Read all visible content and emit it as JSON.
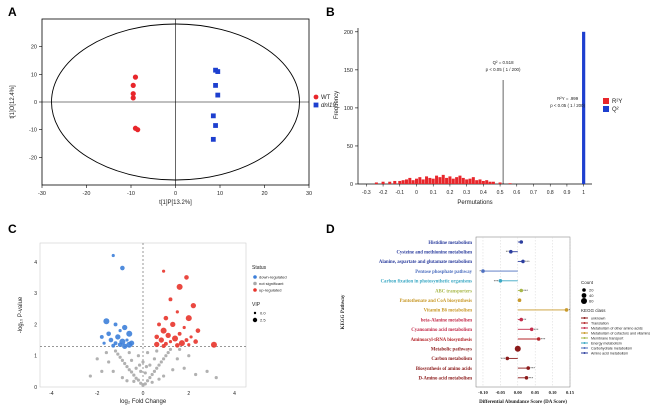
{
  "chart_data": [
    {
      "panel": "A",
      "type": "scatter",
      "xlabel": "t[1]P[13.2%]",
      "ylabel": "t[1]O[12.4%]",
      "xlim": [
        -30,
        30
      ],
      "ylim": [
        -30,
        30
      ],
      "xticks": [
        "-30",
        "-20",
        "-10",
        "0",
        "10",
        "20",
        "30"
      ],
      "yticks": [
        "-20",
        "-10",
        "0",
        "10",
        "20"
      ],
      "legend": {
        "placement": "right"
      },
      "series": [
        {
          "name": "WT",
          "color": "#e8262b",
          "marker": "circle",
          "points": [
            [
              -9,
              9
            ],
            [
              -9.5,
              6
            ],
            [
              -9.5,
              3
            ],
            [
              -9.5,
              1.5
            ],
            [
              -9,
              -9.5
            ],
            [
              -8.5,
              -10
            ]
          ]
        },
        {
          "name": "dnl19",
          "color": "#1d3fcf",
          "marker": "square",
          "points": [
            [
              9,
              11.5
            ],
            [
              9.5,
              11
            ],
            [
              9,
              6
            ],
            [
              9.5,
              2.5
            ],
            [
              8.5,
              -5
            ],
            [
              9,
              -8.5
            ],
            [
              8.5,
              -13.5
            ]
          ]
        }
      ]
    },
    {
      "panel": "B",
      "type": "bar",
      "xlabel": "Permutations",
      "ylabel": "Frequency",
      "xlim": [
        -0.35,
        1.05
      ],
      "ylim": [
        0,
        205
      ],
      "xticks": [
        "-0.3",
        "-0.2",
        "-0.1",
        "0",
        "0.1",
        "0.2",
        "0.3",
        "0.4",
        "0.5",
        "0.6",
        "0.7",
        "0.8",
        "0.9",
        "1"
      ],
      "yticks": [
        "0",
        "50",
        "100",
        "150",
        "200"
      ],
      "annotations": [
        {
          "x": 0.518,
          "line1": "Q² = 0.518",
          "line2": "p < 0.05 ( 1 / 200)"
        },
        {
          "x": 1.0,
          "line1": "R²Y = .999",
          "line2": "p < 0.05 ( 1 / 200)"
        }
      ],
      "legend": {
        "placement": "right",
        "entries": [
          "R²Y",
          "Q²"
        ],
        "colors": [
          "#e8262b",
          "#1d3fcf"
        ]
      },
      "series": [
        {
          "name": "R²Y",
          "color": "#e8262b",
          "x": [
            -0.24,
            -0.2,
            -0.16,
            -0.13,
            -0.1,
            -0.08,
            -0.06,
            -0.04,
            -0.02,
            0.0,
            0.02,
            0.04,
            0.06,
            0.08,
            0.1,
            0.12,
            0.14,
            0.16,
            0.18,
            0.2,
            0.22,
            0.24,
            0.26,
            0.28,
            0.3,
            0.32,
            0.34,
            0.36,
            0.38,
            0.4,
            0.42,
            0.44,
            0.46,
            0.5,
            0.56
          ],
          "values": [
            2,
            3,
            3,
            4,
            4,
            5,
            6,
            8,
            5,
            7,
            9,
            6,
            10,
            8,
            7,
            11,
            9,
            12,
            8,
            10,
            7,
            9,
            11,
            8,
            6,
            7,
            9,
            5,
            6,
            4,
            5,
            3,
            3,
            2,
            1
          ]
        },
        {
          "name": "Q²",
          "color": "#1d3fcf",
          "x": [
            1.0
          ],
          "values": [
            200
          ]
        }
      ]
    },
    {
      "panel": "C",
      "type": "scatter",
      "xlabel": "log₂ Fold Change",
      "ylabel": "-log₁₀ P-value",
      "xlim": [
        -4.5,
        4.5
      ],
      "ylim": [
        0,
        4.6
      ],
      "xticks": [
        "-4",
        "-2",
        "0",
        "2",
        "4"
      ],
      "yticks": [
        "0",
        "1",
        "2",
        "3",
        "4"
      ],
      "threshold_y": 1.3,
      "legend": {
        "placement": "right",
        "status_title": "Status",
        "status": [
          "down-regulated",
          "not significant",
          "up-regulated"
        ],
        "status_colors": [
          "#3d7fd9",
          "#a8a8a8",
          "#e8342b"
        ],
        "vip_title": "VIP",
        "vip": [
          "0.0",
          "2.5"
        ]
      },
      "series": [
        {
          "name": "down-regulated",
          "color": "#3d7fd9",
          "points": [
            [
              -1.3,
              4.2
            ],
            [
              -0.9,
              3.8
            ],
            [
              -1.6,
              2.1
            ],
            [
              -1.2,
              2.0
            ],
            [
              -0.8,
              1.9
            ],
            [
              -1.0,
              1.8
            ],
            [
              -1.5,
              1.7
            ],
            [
              -0.6,
              1.7
            ],
            [
              -1.8,
              1.6
            ],
            [
              -1.1,
              1.6
            ],
            [
              -0.7,
              1.5
            ],
            [
              -1.4,
              1.5
            ],
            [
              -0.9,
              1.45
            ],
            [
              -1.2,
              1.4
            ],
            [
              -0.5,
              1.4
            ],
            [
              -1.7,
              1.4
            ],
            [
              -1.0,
              1.35
            ],
            [
              -0.6,
              1.35
            ],
            [
              -1.3,
              1.32
            ],
            [
              -0.8,
              1.3
            ]
          ]
        },
        {
          "name": "not significant",
          "color": "#a8a8a8",
          "points": [
            [
              0,
              0.05
            ],
            [
              0.1,
              0.1
            ],
            [
              -0.1,
              0.12
            ],
            [
              0.2,
              0.2
            ],
            [
              -0.2,
              0.22
            ],
            [
              0.3,
              0.3
            ],
            [
              -0.3,
              0.28
            ],
            [
              0.4,
              0.4
            ],
            [
              -0.4,
              0.38
            ],
            [
              0.5,
              0.5
            ],
            [
              -0.5,
              0.48
            ],
            [
              0.6,
              0.6
            ],
            [
              -0.6,
              0.55
            ],
            [
              0.7,
              0.7
            ],
            [
              -0.7,
              0.65
            ],
            [
              0.8,
              0.8
            ],
            [
              -0.8,
              0.75
            ],
            [
              0.9,
              0.9
            ],
            [
              -0.9,
              0.85
            ],
            [
              1.0,
              1.0
            ],
            [
              -1.0,
              0.95
            ],
            [
              1.1,
              1.1
            ],
            [
              -1.1,
              1.05
            ],
            [
              1.2,
              1.2
            ],
            [
              -1.2,
              1.15
            ],
            [
              0.3,
              0.7
            ],
            [
              -0.3,
              0.6
            ],
            [
              0.5,
              0.9
            ],
            [
              -0.5,
              0.85
            ],
            [
              0.2,
              1.1
            ],
            [
              -0.2,
              1.0
            ],
            [
              0.6,
              1.15
            ],
            [
              -0.6,
              1.1
            ],
            [
              1.5,
              0.9
            ],
            [
              -1.5,
              0.8
            ],
            [
              1.8,
              0.6
            ],
            [
              -1.8,
              0.5
            ],
            [
              2.3,
              0.4
            ],
            [
              -2.3,
              0.35
            ],
            [
              3.2,
              0.3
            ],
            [
              2.8,
              0.5
            ],
            [
              0.4,
              0.15
            ],
            [
              -0.4,
              0.18
            ],
            [
              0.9,
              0.35
            ],
            [
              -0.9,
              0.3
            ],
            [
              1.3,
              0.55
            ],
            [
              -1.3,
              0.5
            ],
            [
              0.1,
              0.45
            ],
            [
              -0.1,
              0.5
            ],
            [
              0.7,
              0.25
            ],
            [
              -0.7,
              0.2
            ],
            [
              1.6,
              1.2
            ],
            [
              -1.6,
              1.1
            ],
            [
              2.0,
              1.0
            ],
            [
              -2.0,
              0.9
            ],
            [
              0.0,
              0.8
            ],
            [
              0.15,
              0.65
            ],
            [
              -0.15,
              0.7
            ]
          ]
        },
        {
          "name": "up-regulated",
          "color": "#e8342b",
          "points": [
            [
              0.9,
              3.7
            ],
            [
              1.9,
              3.5
            ],
            [
              1.6,
              3.2
            ],
            [
              1.2,
              2.8
            ],
            [
              2.2,
              2.6
            ],
            [
              1.5,
              2.4
            ],
            [
              1.0,
              2.2
            ],
            [
              2.0,
              2.2
            ],
            [
              0.7,
              2.0
            ],
            [
              1.3,
              2.0
            ],
            [
              1.8,
              1.9
            ],
            [
              2.4,
              1.8
            ],
            [
              0.9,
              1.8
            ],
            [
              1.6,
              1.7
            ],
            [
              1.1,
              1.65
            ],
            [
              2.1,
              1.6
            ],
            [
              0.6,
              1.6
            ],
            [
              1.4,
              1.55
            ],
            [
              1.9,
              1.5
            ],
            [
              0.8,
              1.5
            ],
            [
              1.2,
              1.45
            ],
            [
              2.3,
              1.45
            ],
            [
              1.7,
              1.4
            ],
            [
              1.0,
              1.38
            ],
            [
              0.6,
              1.36
            ],
            [
              2.0,
              1.35
            ],
            [
              1.5,
              1.33
            ],
            [
              3.1,
              1.35
            ],
            [
              0.9,
              1.31
            ]
          ]
        }
      ]
    },
    {
      "panel": "D",
      "type": "bar",
      "xlabel": "Differential Abundance Score (DA Score)",
      "ylabel": "KEGG Pathway",
      "xlim": [
        -0.12,
        0.15
      ],
      "xticks": [
        "-0.10",
        "-0.05",
        "0.00",
        "0.05",
        "0.10",
        "0.15"
      ],
      "categories": [
        "Histidine metabolism",
        "Cysteine and methionine metabolism",
        "Alanine, aspartate and glutamate metabolism",
        "Pentose phosphate pathway",
        "Carbon fixation in photosynthetic organisms",
        "ABC transporters",
        "Pantothenate and CoA biosynthesis",
        "Vitamin B6 metabolism",
        "beta-Alanine metabolism",
        "Cyanoamino acid metabolism",
        "Aminoacyl-tRNA biosynthesis",
        "Metabolic pathways",
        "Carbon metabolism",
        "Biosynthesis of amino acids",
        "D-Amino acid metabolism"
      ],
      "values": [
        0.01,
        -0.02,
        0.015,
        -0.1,
        -0.05,
        0.01,
        0.005,
        0.14,
        0.01,
        0.04,
        0.06,
        0.0,
        -0.03,
        0.03,
        0.025
      ],
      "count": [
        20,
        20,
        20,
        20,
        20,
        20,
        20,
        20,
        20,
        20,
        20,
        60,
        20,
        20,
        20
      ],
      "significance": [
        "",
        "**",
        "***",
        "*",
        "***",
        "***",
        "",
        "*",
        "**",
        "***",
        "***",
        "",
        "***",
        "***",
        "***"
      ],
      "kegg_class_of_category": [
        "Amino acid metabolism",
        "Amino acid metabolism",
        "Amino acid metabolism",
        "Carbohydrate metabolism",
        "Energy metabolism",
        "Membrane transport",
        "Metabolism of cofactors and vitamins",
        "Metabolism of cofactors and vitamins",
        "Metabolism of other amino acids",
        "Metabolism of other amino acids",
        "Translation",
        "unknown",
        "unknown",
        "unknown",
        "unknown"
      ],
      "legend": {
        "placement": "right",
        "count_title": "Count",
        "count": [
          "20",
          "40",
          "60"
        ],
        "class_title": "KEGG class",
        "classes": [
          "unknown",
          "Translation",
          "Metabolism of other amino acids",
          "Metabolism of cofactors and vitamins",
          "Membrane transport",
          "Energy metabolism",
          "Carbohydrate metabolism",
          "Amino acid metabolism"
        ],
        "class_colors": [
          "#8b1a1a",
          "#b5252a",
          "#c42d4c",
          "#c99a2b",
          "#a8b84a",
          "#3aa8c4",
          "#4d6fbf",
          "#2c3e9e"
        ]
      }
    }
  ],
  "panel_letters": [
    "A",
    "B",
    "C",
    "D"
  ]
}
